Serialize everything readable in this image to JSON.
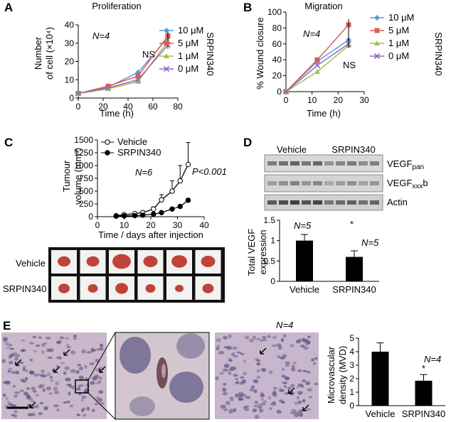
{
  "panels": {
    "A": {
      "letter": "A",
      "title": "Proliferation",
      "ylabel_line1": "Number",
      "ylabel_line2": "of cell (×10⁴)",
      "xlabel": "Time (h)",
      "n_label": "N=4",
      "ns_label": "NS",
      "side_label": "SRPIN340",
      "x_ticks": [
        "0",
        "20",
        "40",
        "60",
        "80"
      ],
      "y_ticks": [
        "0",
        "10",
        "20",
        "30",
        "40"
      ]
    },
    "B": {
      "letter": "B",
      "title": "Migration",
      "ylabel": "% Wound closure",
      "xlabel": "Time (h)",
      "n_label": "N=4",
      "ns_label": "NS",
      "side_label": "SRPIN340",
      "x_ticks": [
        "0",
        "10",
        "20",
        "30"
      ],
      "y_ticks": [
        "0",
        "20",
        "40",
        "60",
        "80",
        "100"
      ]
    },
    "C": {
      "letter": "C",
      "ylabel_line1": "Tumour",
      "ylabel_line2": "volume (mm³)",
      "xlabel": "Time / days after injection",
      "n_label": "N=6",
      "p_label": "P<0.001",
      "x_ticks": [
        "0",
        "10",
        "20",
        "30",
        "40"
      ],
      "y_ticks": [
        "0",
        "250",
        "500",
        "750",
        "1000",
        "1250",
        "1500"
      ],
      "photo_row_labels": [
        "Vehicle",
        "SRPIN340"
      ]
    },
    "D": {
      "letter": "D",
      "blot_group_labels": [
        "Vehicle",
        "SRPIN340"
      ],
      "blot_row_labels": [
        "VEGFpan",
        "VEGFxxxb",
        "Actin"
      ],
      "ylabel_line1": "Total VEGF",
      "ylabel_line2": "expression",
      "n_labels": [
        "N=5",
        "N=5"
      ],
      "star": "*",
      "y_ticks": [
        "0",
        "0.5",
        "1",
        "1.5"
      ],
      "categories": [
        "Vehicle",
        "SRPIN340"
      ]
    },
    "E": {
      "letter": "E",
      "n_label_img": "N=4",
      "n_label_chart": "N=4",
      "ylabel_line1": "Microvascular",
      "ylabel_line2": "density (MVD)",
      "star": "*",
      "y_ticks": [
        "0",
        "1",
        "2",
        "3",
        "4",
        "5"
      ],
      "categories": [
        "Vehicle",
        "SRPIN340"
      ]
    }
  },
  "colors": {
    "s10": "#5b9bd5",
    "s5": "#e05a5a",
    "s1": "#9bc44a",
    "s0": "#8e6ab8",
    "tissue": "#c8b8cc",
    "blot_bg": "#d8d8d8",
    "tumour": "#c0433a"
  },
  "chart_data": [
    {
      "panel": "A",
      "type": "line",
      "title": "Proliferation",
      "xlabel": "Time (h)",
      "ylabel": "Number of cell (×10⁴)",
      "xlim": [
        0,
        80
      ],
      "ylim": [
        0,
        40
      ],
      "x": [
        0,
        24,
        48,
        72
      ],
      "series": [
        {
          "name": "10 μM",
          "values": [
            2.5,
            6,
            14,
            33
          ]
        },
        {
          "name": "5 μM",
          "values": [
            2.5,
            6.5,
            12,
            34
          ]
        },
        {
          "name": "1 μM",
          "values": [
            2.5,
            5,
            9,
            31
          ]
        },
        {
          "name": "0 μM",
          "values": [
            2.5,
            5.5,
            10,
            29
          ]
        }
      ],
      "legend_position": "right"
    },
    {
      "panel": "B",
      "type": "line",
      "title": "Migration",
      "xlabel": "Time (h)",
      "ylabel": "% Wound closure",
      "xlim": [
        0,
        30
      ],
      "ylim": [
        0,
        100
      ],
      "x": [
        0,
        12,
        24
      ],
      "series": [
        {
          "name": "10 μM",
          "values": [
            0,
            38,
            65
          ]
        },
        {
          "name": "5 μM",
          "values": [
            0,
            40,
            84
          ]
        },
        {
          "name": "1 μM",
          "values": [
            0,
            25,
            58
          ]
        },
        {
          "name": "0 μM",
          "values": [
            0,
            33,
            60
          ]
        }
      ],
      "legend_position": "right"
    },
    {
      "panel": "C",
      "type": "line",
      "xlabel": "Time / days after injection",
      "ylabel": "Tumour volume (mm³)",
      "xlim": [
        0,
        40
      ],
      "ylim": [
        0,
        1500
      ],
      "series": [
        {
          "name": "Vehicle",
          "x": [
            7,
            10,
            14,
            17,
            21,
            24,
            28,
            31,
            34
          ],
          "values": [
            20,
            40,
            60,
            80,
            150,
            330,
            500,
            700,
            1020
          ],
          "errors": [
            5,
            10,
            10,
            15,
            40,
            100,
            200,
            300,
            430
          ]
        },
        {
          "name": "SRPIN340",
          "x": [
            7,
            10,
            14,
            17,
            21,
            24,
            28,
            31,
            34
          ],
          "values": [
            10,
            15,
            20,
            30,
            50,
            80,
            150,
            200,
            320
          ],
          "errors": [
            3,
            3,
            5,
            5,
            10,
            20,
            30,
            30,
            40
          ]
        }
      ],
      "legend_position": "top-left"
    },
    {
      "panel": "D",
      "type": "bar",
      "ylabel": "Total VEGF expression",
      "categories": [
        "Vehicle",
        "SRPIN340"
      ],
      "values": [
        1.0,
        0.6
      ],
      "errors": [
        0.15,
        0.15
      ],
      "ylim": [
        0,
        1.5
      ]
    },
    {
      "panel": "E",
      "type": "bar",
      "ylabel": "Microvascular density (MVD)",
      "categories": [
        "Vehicle",
        "SRPIN340"
      ],
      "values": [
        4.0,
        1.85
      ],
      "errors": [
        0.65,
        0.45
      ],
      "ylim": [
        0,
        5
      ]
    }
  ]
}
